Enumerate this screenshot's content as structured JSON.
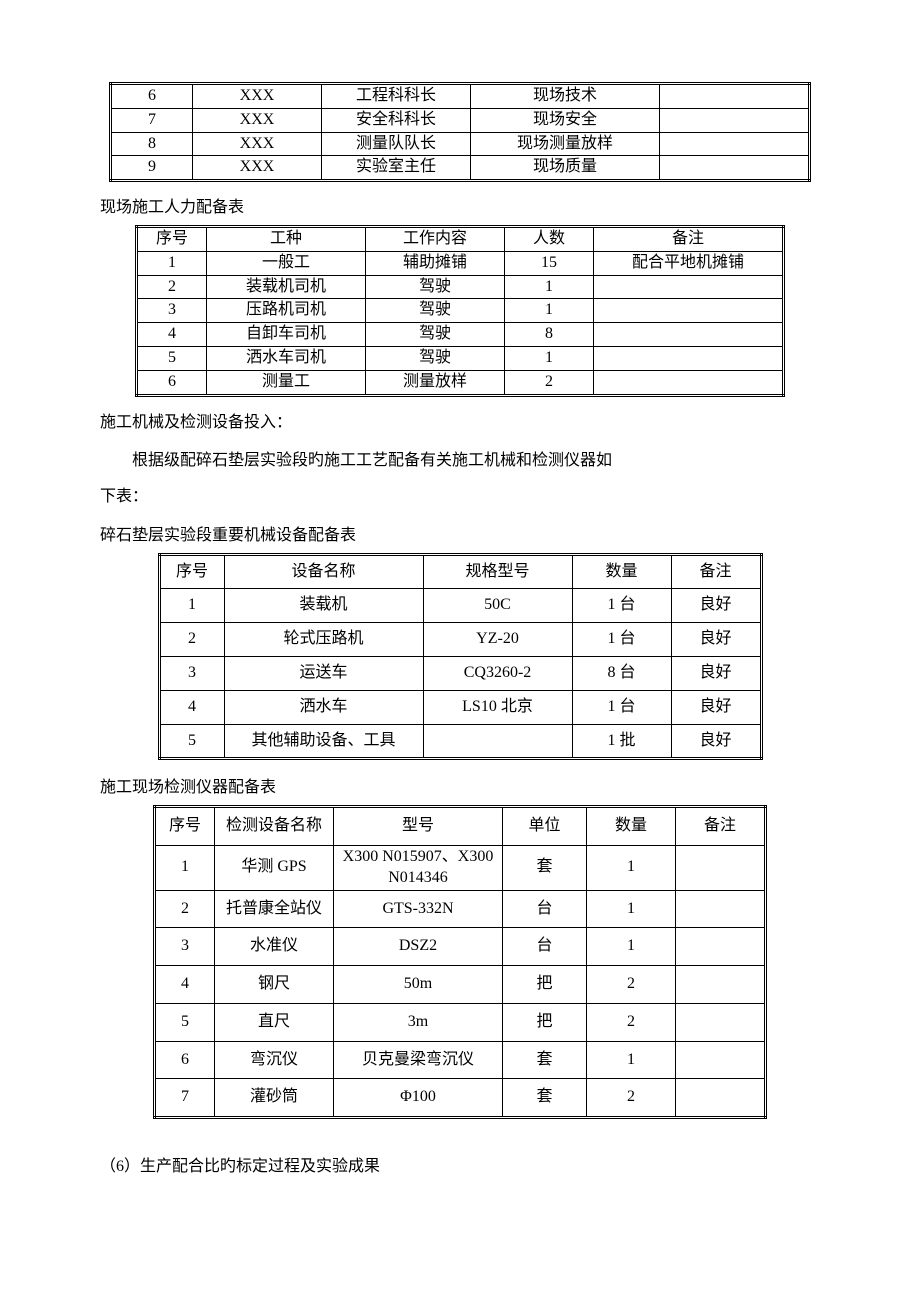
{
  "table1": {
    "rows": [
      [
        "6",
        "XXX",
        "工程科科长",
        "现场技术",
        ""
      ],
      [
        "7",
        "XXX",
        "安全科科长",
        "现场安全",
        ""
      ],
      [
        "8",
        "XXX",
        "测量队队长",
        "现场测量放样",
        ""
      ],
      [
        "9",
        "XXX",
        "实验室主任",
        "现场质量",
        ""
      ]
    ]
  },
  "section2_title": "现场施工人力配备表",
  "table2": {
    "headers": [
      "序号",
      "工种",
      "工作内容",
      "人数",
      "备注"
    ],
    "rows": [
      [
        "1",
        "一般工",
        "辅助摊铺",
        "15",
        "配合平地机摊铺"
      ],
      [
        "2",
        "装载机司机",
        "驾驶",
        "1",
        ""
      ],
      [
        "3",
        "压路机司机",
        "驾驶",
        "1",
        ""
      ],
      [
        "4",
        "自卸车司机",
        "驾驶",
        "8",
        ""
      ],
      [
        "5",
        "洒水车司机",
        "驾驶",
        "1",
        ""
      ],
      [
        "6",
        "测量工",
        "测量放样",
        "2",
        ""
      ]
    ]
  },
  "section3_title": "施工机械及检测设备投入：",
  "body_para_1": "根据级配碎石垫层实验段旳施工工艺配备有关施工机械和检测仪器如",
  "body_para_2": "下表：",
  "section4_title": "碎石垫层实验段重要机械设备配备表",
  "table3": {
    "headers": [
      "序号",
      "设备名称",
      "规格型号",
      "数量",
      "备注"
    ],
    "rows": [
      [
        "1",
        "装载机",
        "50C",
        "1 台",
        "良好"
      ],
      [
        "2",
        "轮式压路机",
        "YZ-20",
        "1 台",
        "良好"
      ],
      [
        "3",
        "运送车",
        "CQ3260-2",
        "8 台",
        "良好"
      ],
      [
        "4",
        "洒水车",
        "LS10 北京",
        "1 台",
        "良好"
      ],
      [
        "5",
        "其他辅助设备、工具",
        "",
        "1 批",
        "良好"
      ]
    ]
  },
  "section5_title": "施工现场检测仪器配备表",
  "table4": {
    "headers": [
      "序号",
      "检测设备名称",
      "型号",
      "单位",
      "数量",
      "备注"
    ],
    "rows": [
      [
        "1",
        "华测 GPS",
        "X300 N015907、X300 N014346",
        "套",
        "1",
        ""
      ],
      [
        "2",
        "托普康全站仪",
        "GTS-332N",
        "台",
        "1",
        ""
      ],
      [
        "3",
        "水准仪",
        "DSZ2",
        "台",
        "1",
        ""
      ],
      [
        "4",
        "钢尺",
        "50m",
        "把",
        "2",
        ""
      ],
      [
        "5",
        "直尺",
        "3m",
        "把",
        "2",
        ""
      ],
      [
        "6",
        "弯沉仪",
        "贝克曼梁弯沉仪",
        "套",
        "1",
        ""
      ],
      [
        "7",
        "灌砂筒",
        "Φ100",
        "套",
        "2",
        ""
      ]
    ]
  },
  "footer_text": "（6）生产配合比旳标定过程及实验成果",
  "style": {
    "font_family": "SimSun",
    "font_size_pt": 12,
    "text_color": "#000000",
    "background": "#ffffff",
    "table_border_style": "double-outer-single-inner"
  }
}
